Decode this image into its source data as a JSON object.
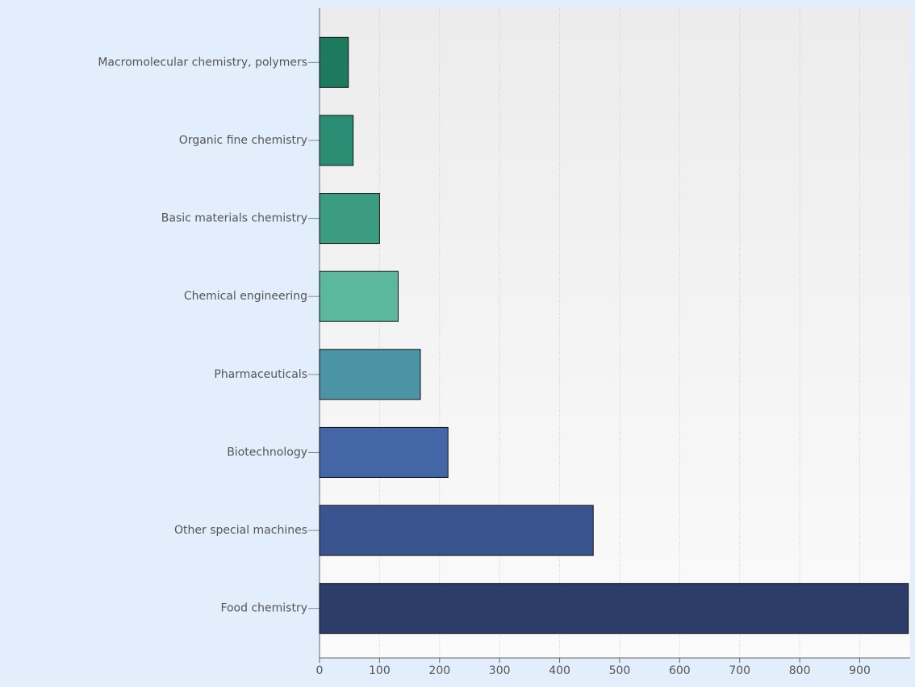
{
  "chart_data": {
    "type": "bar",
    "orientation": "horizontal",
    "categories": [
      "Macromolecular chemistry, polymers",
      "Organic fine chemistry",
      "Basic materials chemistry",
      "Chemical engineering",
      "Pharmaceuticals",
      "Biotechnology",
      "Other special machines",
      "Food chemistry"
    ],
    "values": [
      48,
      56,
      100,
      131,
      168,
      214,
      456,
      981
    ],
    "colors": [
      "#1d7a5e",
      "#2a8c72",
      "#3c9c82",
      "#5cb89c",
      "#4a94a6",
      "#4466a6",
      "#3a5490",
      "#2c3d6a"
    ],
    "xlim": [
      0,
      984
    ],
    "xticks": [
      0,
      100,
      200,
      300,
      400,
      500,
      600,
      700,
      800,
      900
    ],
    "grid": true
  }
}
